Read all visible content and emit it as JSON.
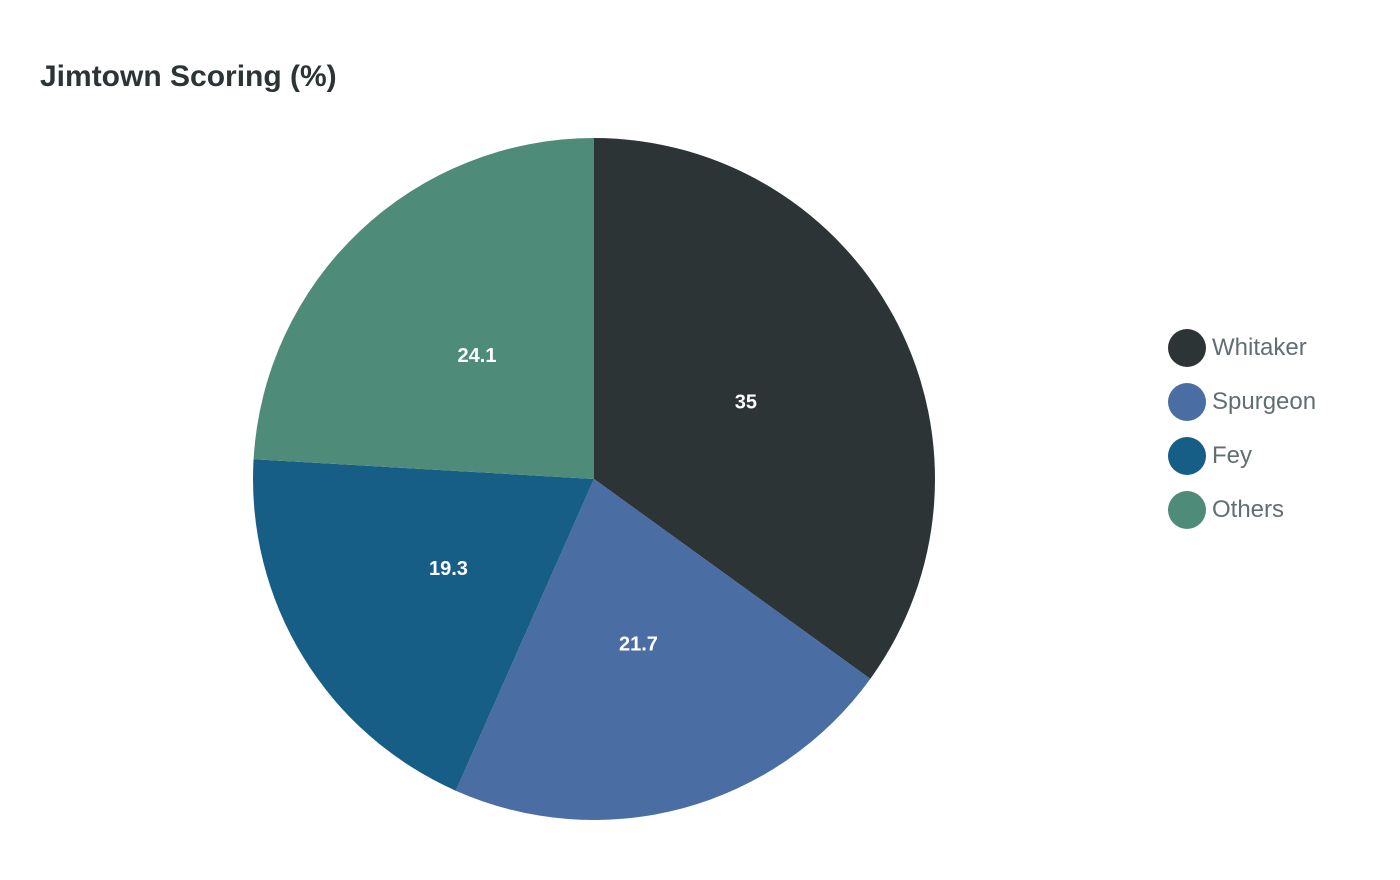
{
  "chart_data": {
    "type": "pie",
    "title": "Jimtown Scoring (%)",
    "categories": [
      "Whitaker",
      "Spurgeon",
      "Fey",
      "Others"
    ],
    "values": [
      35,
      21.7,
      19.3,
      24.1
    ],
    "colors": [
      "#2d3436",
      "#4a6da3",
      "#175e86",
      "#4f8b79"
    ],
    "start_angle": "12 o'clock",
    "direction": "clockwise",
    "legend_position": "right",
    "data_labels": [
      "35",
      "21.7",
      "19.3",
      "24.1"
    ]
  },
  "legend": {
    "items": [
      {
        "label": "Whitaker",
        "color": "#2d3436"
      },
      {
        "label": "Spurgeon",
        "color": "#4a6da3"
      },
      {
        "label": "Fey",
        "color": "#175e86"
      },
      {
        "label": "Others",
        "color": "#4f8b79"
      }
    ]
  }
}
